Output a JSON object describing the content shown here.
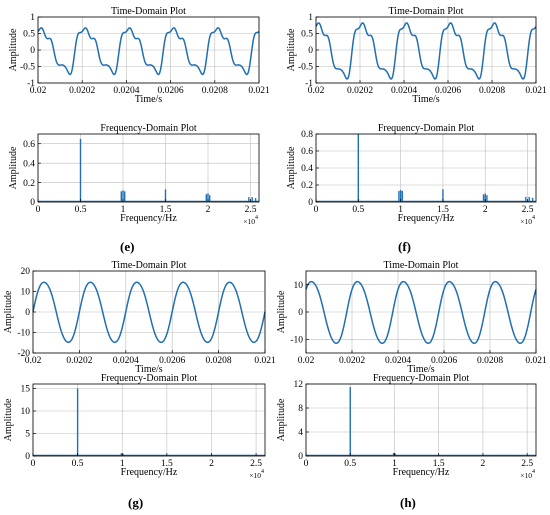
{
  "panel_labels": [
    "(e)",
    "(f)",
    "(g)",
    "(h)"
  ],
  "colors": {
    "series": "#1f6fb2",
    "axis": "#000000",
    "grid": "#bdbdbd"
  },
  "chart_data": [
    {
      "id": "e-time",
      "type": "line",
      "title": "Time-Domain Plot",
      "xlabel": "Time/s",
      "ylabel": "Amplitude",
      "xlim": [
        0.02,
        0.021
      ],
      "ylim": [
        -1,
        1
      ],
      "xticks": [
        0.02,
        0.0202,
        0.0204,
        0.0206,
        0.0208,
        0.021
      ],
      "xticklabels": [
        "0.02",
        "0.0202",
        "0.0204",
        "0.0206",
        "0.0208",
        "0.021"
      ],
      "yticks": [
        -1,
        -0.5,
        0,
        0.5,
        1
      ],
      "yticklabels": [
        "-1",
        "-0.5",
        "0",
        "0.5",
        "1"
      ],
      "grid": true,
      "signal": {
        "freq_hz": 5000,
        "phase": 0.95,
        "fund": 0.65,
        "harmonics": [
          [
            2,
            0.12,
            0
          ],
          [
            3,
            0.13,
            0.1
          ],
          [
            4,
            0.08,
            1.6
          ],
          [
            5,
            0.05,
            0.4
          ]
        ]
      }
    },
    {
      "id": "e-freq",
      "type": "line",
      "title": "Frequency-Domain Plot",
      "xlabel": "Frequency/Hz",
      "ylabel": "Amplitude",
      "xlim": [
        0,
        26000
      ],
      "ylim": [
        0,
        0.7
      ],
      "xticks": [
        0,
        5000,
        10000,
        15000,
        20000,
        25000
      ],
      "xticklabels": [
        "0",
        "0.5",
        "1",
        "1.5",
        "2",
        "2.5"
      ],
      "xmultiplier": "×10",
      "xmultiplier_exp": "4",
      "yticks": [
        0,
        0.2,
        0.4,
        0.6
      ],
      "yticklabels": [
        "0",
        "0.2",
        "0.4",
        "0.6"
      ],
      "grid": true,
      "peaks": [
        [
          5000,
          0.65
        ],
        [
          9800,
          0.11
        ],
        [
          10000,
          0.12
        ],
        [
          10200,
          0.11
        ],
        [
          15000,
          0.13
        ],
        [
          19800,
          0.08
        ],
        [
          20000,
          0.09
        ],
        [
          20200,
          0.07
        ],
        [
          24800,
          0.05
        ],
        [
          25200,
          0.05
        ],
        [
          25600,
          0.04
        ]
      ]
    },
    {
      "id": "f-time",
      "type": "line",
      "title": "Time-Domain Plot",
      "xlabel": "Time/s",
      "ylabel": "Amplitude",
      "xlim": [
        0.02,
        0.021
      ],
      "ylim": [
        -1,
        1
      ],
      "xticks": [
        0.02,
        0.0202,
        0.0204,
        0.0206,
        0.0208,
        0.021
      ],
      "xticklabels": [
        "0.02",
        "0.0202",
        "0.0204",
        "0.0206",
        "0.0208",
        "0.021"
      ],
      "yticks": [
        -1,
        -0.5,
        0,
        0.5,
        1
      ],
      "yticklabels": [
        "-1",
        "-0.5",
        "0",
        "0.5",
        "1"
      ],
      "grid": true,
      "signal": {
        "freq_hz": 5000,
        "phase": 1.05,
        "fund": 0.8,
        "harmonics": [
          [
            2,
            0.13,
            0
          ],
          [
            3,
            0.15,
            0.1
          ],
          [
            4,
            0.09,
            1.6
          ],
          [
            5,
            0.06,
            0.4
          ]
        ]
      }
    },
    {
      "id": "f-freq",
      "type": "line",
      "title": "Frequency-Domain Plot",
      "xlabel": "Frequency/Hz",
      "ylabel": "Amplitude",
      "xlim": [
        0,
        26000
      ],
      "ylim": [
        0,
        0.8
      ],
      "xticks": [
        0,
        5000,
        10000,
        15000,
        20000,
        25000
      ],
      "xticklabels": [
        "0",
        "0.5",
        "1",
        "1.5",
        "2",
        "2.5"
      ],
      "xmultiplier": "×10",
      "xmultiplier_exp": "4",
      "yticks": [
        0,
        0.2,
        0.4,
        0.6,
        0.8
      ],
      "yticklabels": [
        "0",
        "0.2",
        "0.4",
        "0.6",
        "0.8"
      ],
      "grid": true,
      "peaks": [
        [
          5000,
          0.8
        ],
        [
          9800,
          0.13
        ],
        [
          10000,
          0.14
        ],
        [
          10200,
          0.13
        ],
        [
          15000,
          0.15
        ],
        [
          19800,
          0.09
        ],
        [
          20000,
          0.1
        ],
        [
          20200,
          0.08
        ],
        [
          24800,
          0.06
        ],
        [
          25200,
          0.06
        ],
        [
          25600,
          0.05
        ]
      ]
    },
    {
      "id": "g-time",
      "type": "line",
      "title": "Time-Domain Plot",
      "xlabel": "Time/s",
      "ylabel": "Amplitude",
      "xlim": [
        0.02,
        0.021
      ],
      "ylim": [
        -20,
        20
      ],
      "xticks": [
        0.02,
        0.0202,
        0.0204,
        0.0206,
        0.0208,
        0.021
      ],
      "xticklabels": [
        "0.02",
        "0.0202",
        "0.0204",
        "0.0206",
        "0.0208",
        "0.021"
      ],
      "yticks": [
        -20,
        -10,
        0,
        10,
        20
      ],
      "yticklabels": [
        "-20",
        "-10",
        "0",
        "10",
        "20"
      ],
      "grid": true,
      "signal": {
        "freq_hz": 5000,
        "phase": 0.0,
        "fund": 15,
        "harmonics": [
          [
            2,
            0.5,
            0.3
          ],
          [
            3,
            0.4,
            0
          ]
        ]
      }
    },
    {
      "id": "g-freq",
      "type": "line",
      "title": "Frequency-Domain Plot",
      "xlabel": "Frequency/Hz",
      "ylabel": "Amplitude",
      "xlim": [
        0,
        26000
      ],
      "ylim": [
        0,
        16
      ],
      "xticks": [
        0,
        5000,
        10000,
        15000,
        20000,
        25000
      ],
      "xticklabels": [
        "0",
        "0.5",
        "1",
        "1.5",
        "2",
        "2.5"
      ],
      "xmultiplier": "×10",
      "xmultiplier_exp": "4",
      "yticks": [
        0,
        5,
        10,
        15
      ],
      "yticklabels": [
        "0",
        "5",
        "10",
        "15"
      ],
      "grid": true,
      "peaks": [
        [
          5000,
          15
        ],
        [
          9900,
          0.6
        ],
        [
          10100,
          0.5
        ],
        [
          15000,
          0.2
        ],
        [
          20000,
          0.15
        ]
      ]
    },
    {
      "id": "h-time",
      "type": "line",
      "title": "Time-Domain Plot",
      "xlabel": "Time/s",
      "ylabel": "Amplitude",
      "xlim": [
        0.02,
        0.021
      ],
      "ylim": [
        -15,
        15
      ],
      "xticks": [
        0.02,
        0.0202,
        0.0204,
        0.0206,
        0.0208,
        0.021
      ],
      "xticklabels": [
        "0.02",
        "0.0202",
        "0.0204",
        "0.0206",
        "0.0208",
        "0.021"
      ],
      "yticks": [
        -10,
        0,
        10
      ],
      "yticklabels": [
        "-10",
        "0",
        "10"
      ],
      "grid": true,
      "signal": {
        "freq_hz": 5000,
        "phase": 0.7,
        "fund": 11.5,
        "harmonics": [
          [
            2,
            0.6,
            0.3
          ],
          [
            3,
            0.3,
            0
          ]
        ]
      }
    },
    {
      "id": "h-freq",
      "type": "line",
      "title": "Frequency-Domain Plot",
      "xlabel": "Frequency/Hz",
      "ylabel": "Amplitude",
      "xlim": [
        0,
        26000
      ],
      "ylim": [
        0,
        12
      ],
      "xticks": [
        0,
        5000,
        10000,
        15000,
        20000,
        25000
      ],
      "xticklabels": [
        "0",
        "0.5",
        "1",
        "1.5",
        "2",
        "2.5"
      ],
      "xmultiplier": "×10",
      "xmultiplier_exp": "4",
      "yticks": [
        0,
        4,
        8,
        12
      ],
      "yticklabels": [
        "0",
        "4",
        "8",
        "12"
      ],
      "grid": true,
      "peaks": [
        [
          5000,
          11.5
        ],
        [
          9900,
          0.5
        ],
        [
          10100,
          0.4
        ],
        [
          15000,
          0.15
        ],
        [
          20000,
          0.1
        ]
      ]
    }
  ]
}
